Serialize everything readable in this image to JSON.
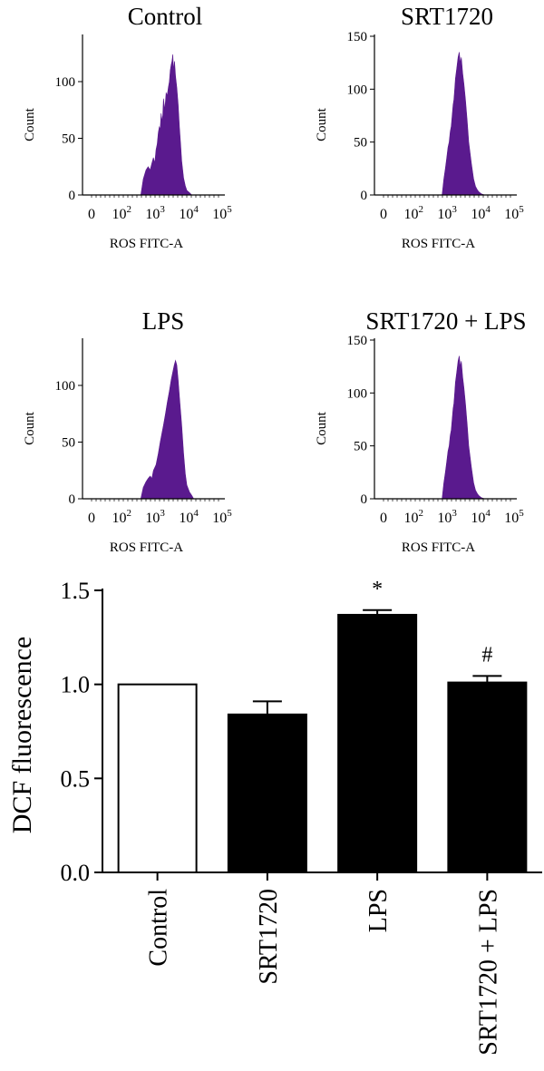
{
  "chart_data": [
    {
      "type": "area",
      "title": "Control",
      "xlabel": "ROS FITC-A",
      "ylabel": "Count",
      "x_scale": "log",
      "xlim": [
        0,
        100000
      ],
      "x_ticks": [
        {
          "text": "0",
          "sup": ""
        },
        {
          "text": "10",
          "sup": "2"
        },
        {
          "text": "10",
          "sup": "3"
        },
        {
          "text": "10",
          "sup": "4"
        },
        {
          "text": "10",
          "sup": "5"
        }
      ],
      "ylim": [
        0,
        140
      ],
      "y_ticks": [
        "0",
        "50",
        "100"
      ],
      "color": "#5a1a8e",
      "x": [
        420,
        500,
        600,
        700,
        800,
        900,
        1000,
        1100,
        1200,
        1300,
        1400,
        1500,
        1600,
        1700,
        1800,
        1900,
        2000,
        2200,
        2400,
        2600,
        2800,
        3000,
        3200,
        3400,
        3600,
        3800,
        4000,
        4300,
        4600,
        5000,
        5500,
        6000,
        6500,
        7000,
        8000,
        9000,
        10000,
        12000,
        14000
      ],
      "y": [
        0,
        14,
        22,
        25,
        22,
        28,
        33,
        28,
        40,
        45,
        55,
        60,
        58,
        72,
        65,
        70,
        85,
        75,
        90,
        88,
        95,
        100,
        110,
        115,
        118,
        124,
        110,
        118,
        105,
        95,
        80,
        60,
        45,
        30,
        15,
        8,
        4,
        2,
        0
      ]
    },
    {
      "type": "area",
      "title": "SRT1720",
      "xlabel": "ROS FITC-A",
      "ylabel": "Count",
      "x_scale": "log",
      "xlim": [
        0,
        100000
      ],
      "x_ticks": [
        {
          "text": "0",
          "sup": ""
        },
        {
          "text": "10",
          "sup": "2"
        },
        {
          "text": "10",
          "sup": "3"
        },
        {
          "text": "10",
          "sup": "4"
        },
        {
          "text": "10",
          "sup": "5"
        }
      ],
      "ylim": [
        0,
        150
      ],
      "y_ticks": [
        "0",
        "50",
        "100",
        "150"
      ],
      "color": "#5a1a8e",
      "x": [
        800,
        900,
        1000,
        1100,
        1200,
        1300,
        1400,
        1500,
        1600,
        1700,
        1800,
        1900,
        2000,
        2200,
        2400,
        2600,
        2800,
        3000,
        3300,
        3600,
        4000,
        4500,
        5000,
        6000,
        7000,
        8000,
        9000,
        10000,
        12000,
        15000
      ],
      "y": [
        0,
        15,
        25,
        35,
        45,
        50,
        60,
        65,
        75,
        85,
        90,
        100,
        110,
        120,
        130,
        135,
        125,
        130,
        115,
        105,
        90,
        70,
        50,
        30,
        15,
        8,
        5,
        3,
        1,
        0
      ]
    },
    {
      "type": "area",
      "title": "LPS",
      "xlabel": "ROS FITC-A",
      "ylabel": "Count",
      "x_scale": "log",
      "xlim": [
        0,
        100000
      ],
      "x_ticks": [
        {
          "text": "0",
          "sup": ""
        },
        {
          "text": "10",
          "sup": "2"
        },
        {
          "text": "10",
          "sup": "3"
        },
        {
          "text": "10",
          "sup": "4"
        },
        {
          "text": "10",
          "sup": "5"
        }
      ],
      "ylim": [
        0,
        140
      ],
      "y_ticks": [
        "0",
        "50",
        "100"
      ],
      "color": "#5a1a8e",
      "x": [
        420,
        500,
        600,
        700,
        800,
        900,
        1000,
        1200,
        1400,
        1600,
        1800,
        2000,
        2300,
        2600,
        3000,
        3400,
        3800,
        4200,
        4600,
        5000,
        5500,
        6000,
        7000,
        8000,
        9000,
        10000,
        12000,
        14000,
        16000
      ],
      "y": [
        0,
        10,
        15,
        18,
        20,
        18,
        25,
        30,
        40,
        50,
        58,
        65,
        75,
        85,
        95,
        105,
        112,
        118,
        122,
        118,
        105,
        90,
        65,
        40,
        22,
        12,
        6,
        3,
        0
      ]
    },
    {
      "type": "area",
      "title": "SRT1720 + LPS",
      "xlabel": "ROS FITC-A",
      "ylabel": "Count",
      "x_scale": "log",
      "xlim": [
        0,
        100000
      ],
      "x_ticks": [
        {
          "text": "0",
          "sup": ""
        },
        {
          "text": "10",
          "sup": "2"
        },
        {
          "text": "10",
          "sup": "3"
        },
        {
          "text": "10",
          "sup": "4"
        },
        {
          "text": "10",
          "sup": "5"
        }
      ],
      "ylim": [
        0,
        150
      ],
      "y_ticks": [
        "0",
        "50",
        "100",
        "150"
      ],
      "color": "#5a1a8e",
      "x": [
        800,
        900,
        1000,
        1100,
        1200,
        1300,
        1400,
        1500,
        1600,
        1700,
        1800,
        1900,
        2000,
        2200,
        2400,
        2600,
        2800,
        3000,
        3300,
        3600,
        4000,
        4500,
        5000,
        6000,
        7000,
        8000,
        9000,
        10000,
        12000,
        15000
      ],
      "y": [
        0,
        15,
        25,
        35,
        45,
        50,
        60,
        65,
        75,
        85,
        90,
        100,
        110,
        120,
        130,
        135,
        125,
        130,
        115,
        105,
        90,
        70,
        50,
        30,
        15,
        8,
        5,
        3,
        1,
        0
      ]
    },
    {
      "type": "bar",
      "categories": [
        "Control",
        "SRT1720",
        "LPS",
        "SRT1720 + LPS"
      ],
      "values": [
        1.0,
        0.84,
        1.37,
        1.01
      ],
      "errors": [
        0.0,
        0.07,
        0.025,
        0.035
      ],
      "annotations": [
        "",
        "",
        "*",
        "#"
      ],
      "bar_colors": [
        "#ffffff",
        "#000000",
        "#000000",
        "#000000"
      ],
      "ylabel": "DCF fluorescence",
      "ylim": [
        0,
        1.5
      ],
      "y_ticks": [
        "0.0",
        "0.5",
        "1.0",
        "1.5"
      ]
    }
  ]
}
